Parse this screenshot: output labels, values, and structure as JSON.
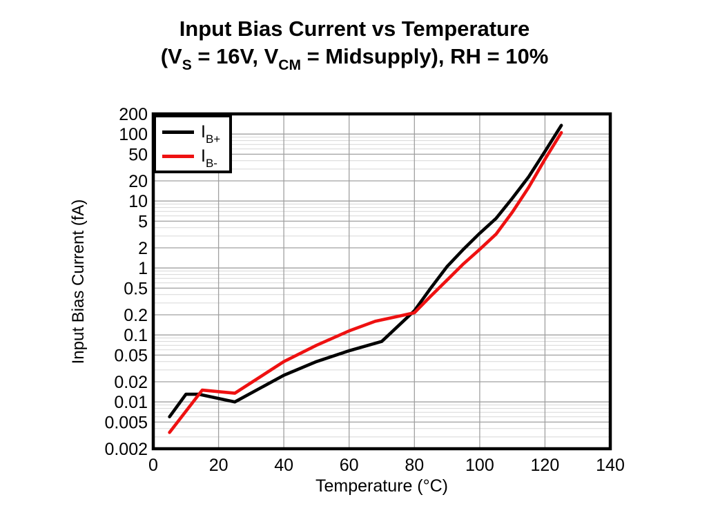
{
  "page": {
    "background": "#ffffff"
  },
  "title": {
    "line1": "Input Bias Current vs Temperature",
    "line2": {
      "p1": "(V",
      "sub1": "S",
      "p2": " = 16V, V",
      "sub2": "CM",
      "p3": " = Midsupply), RH = 10%"
    }
  },
  "axes": {
    "x_label": "Temperature (°C)",
    "y_label": "Input Bias Current (fA)"
  },
  "legend": {
    "items": [
      {
        "name": "IB+",
        "main": "I",
        "sub": "B+",
        "color": "#000000"
      },
      {
        "name": "IB-",
        "main": "I",
        "sub": "B-",
        "color": "#ee1111"
      }
    ]
  },
  "chart_data": {
    "type": "line",
    "title": "Input Bias Current vs Temperature (VS = 16V, VCM = Midsupply), RH = 10%",
    "xlabel": "Temperature (°C)",
    "ylabel": "Input Bias Current (fA)",
    "x_axis": {
      "min": 0,
      "max": 140,
      "ticks": [
        0,
        20,
        40,
        60,
        80,
        100,
        120,
        140
      ],
      "grid": true
    },
    "y_axis": {
      "scale": "log",
      "min": 0.002,
      "max": 200,
      "ticks": [
        200,
        100,
        50,
        20,
        10,
        5,
        2,
        1,
        0.5,
        0.2,
        0.1,
        0.05,
        0.02,
        0.01,
        0.005,
        0.002
      ],
      "minor_grid": true
    },
    "legend_position": "top-left",
    "grid": {
      "vertical": true,
      "horizontal": true
    },
    "colors": {
      "grid_minor": "#d7d7d7",
      "grid_major": "#a0a0a0",
      "frame": "#000000"
    },
    "series": [
      {
        "name": "IB+",
        "color": "#000000",
        "points": [
          [
            5,
            0.006
          ],
          [
            10,
            0.013
          ],
          [
            14,
            0.013
          ],
          [
            25,
            0.01
          ],
          [
            40,
            0.025
          ],
          [
            50,
            0.04
          ],
          [
            60,
            0.058
          ],
          [
            70,
            0.08
          ],
          [
            80,
            0.23
          ],
          [
            85,
            0.5
          ],
          [
            90,
            1.05
          ],
          [
            95,
            1.9
          ],
          [
            100,
            3.3
          ],
          [
            105,
            5.5
          ],
          [
            110,
            11
          ],
          [
            115,
            23
          ],
          [
            120,
            55
          ],
          [
            125,
            135
          ]
        ]
      },
      {
        "name": "IB-",
        "color": "#ee1111",
        "points": [
          [
            5,
            0.0035
          ],
          [
            15,
            0.015
          ],
          [
            25,
            0.0135
          ],
          [
            40,
            0.04
          ],
          [
            50,
            0.07
          ],
          [
            60,
            0.115
          ],
          [
            68,
            0.16
          ],
          [
            75,
            0.19
          ],
          [
            80,
            0.215
          ],
          [
            85,
            0.38
          ],
          [
            90,
            0.66
          ],
          [
            95,
            1.15
          ],
          [
            100,
            1.9
          ],
          [
            105,
            3.2
          ],
          [
            110,
            6.8
          ],
          [
            115,
            16
          ],
          [
            120,
            42
          ],
          [
            125,
            105
          ]
        ]
      }
    ]
  }
}
